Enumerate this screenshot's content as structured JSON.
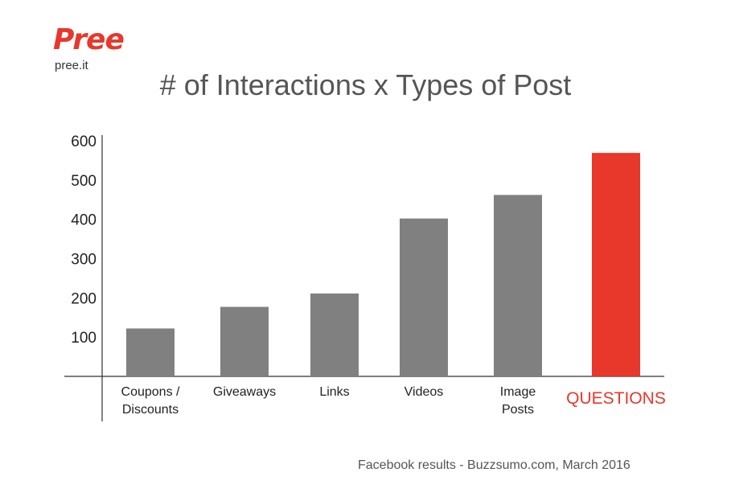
{
  "brand": {
    "name": "Pree",
    "site": "pree.it"
  },
  "footer": "Facebook results - Buzzsumo.com, March 2016",
  "colors": {
    "bar": "#808080",
    "highlight": "#e8372b",
    "axis": "#333333"
  },
  "chart_data": {
    "type": "bar",
    "title": "# of Interactions x Types of Post",
    "xlabel": "",
    "ylabel": "",
    "ylim": [
      0,
      600
    ],
    "yticks": [
      100,
      200,
      300,
      400,
      500,
      600
    ],
    "grid": false,
    "categories": [
      [
        "Coupons /",
        "Discounts"
      ],
      [
        "Giveaways"
      ],
      [
        "Links"
      ],
      [
        "Videos"
      ],
      [
        "Image",
        "Posts"
      ],
      [
        "QUESTIONS"
      ]
    ],
    "values": [
      122,
      177,
      211,
      402,
      462,
      569
    ],
    "highlight_index": 5
  }
}
